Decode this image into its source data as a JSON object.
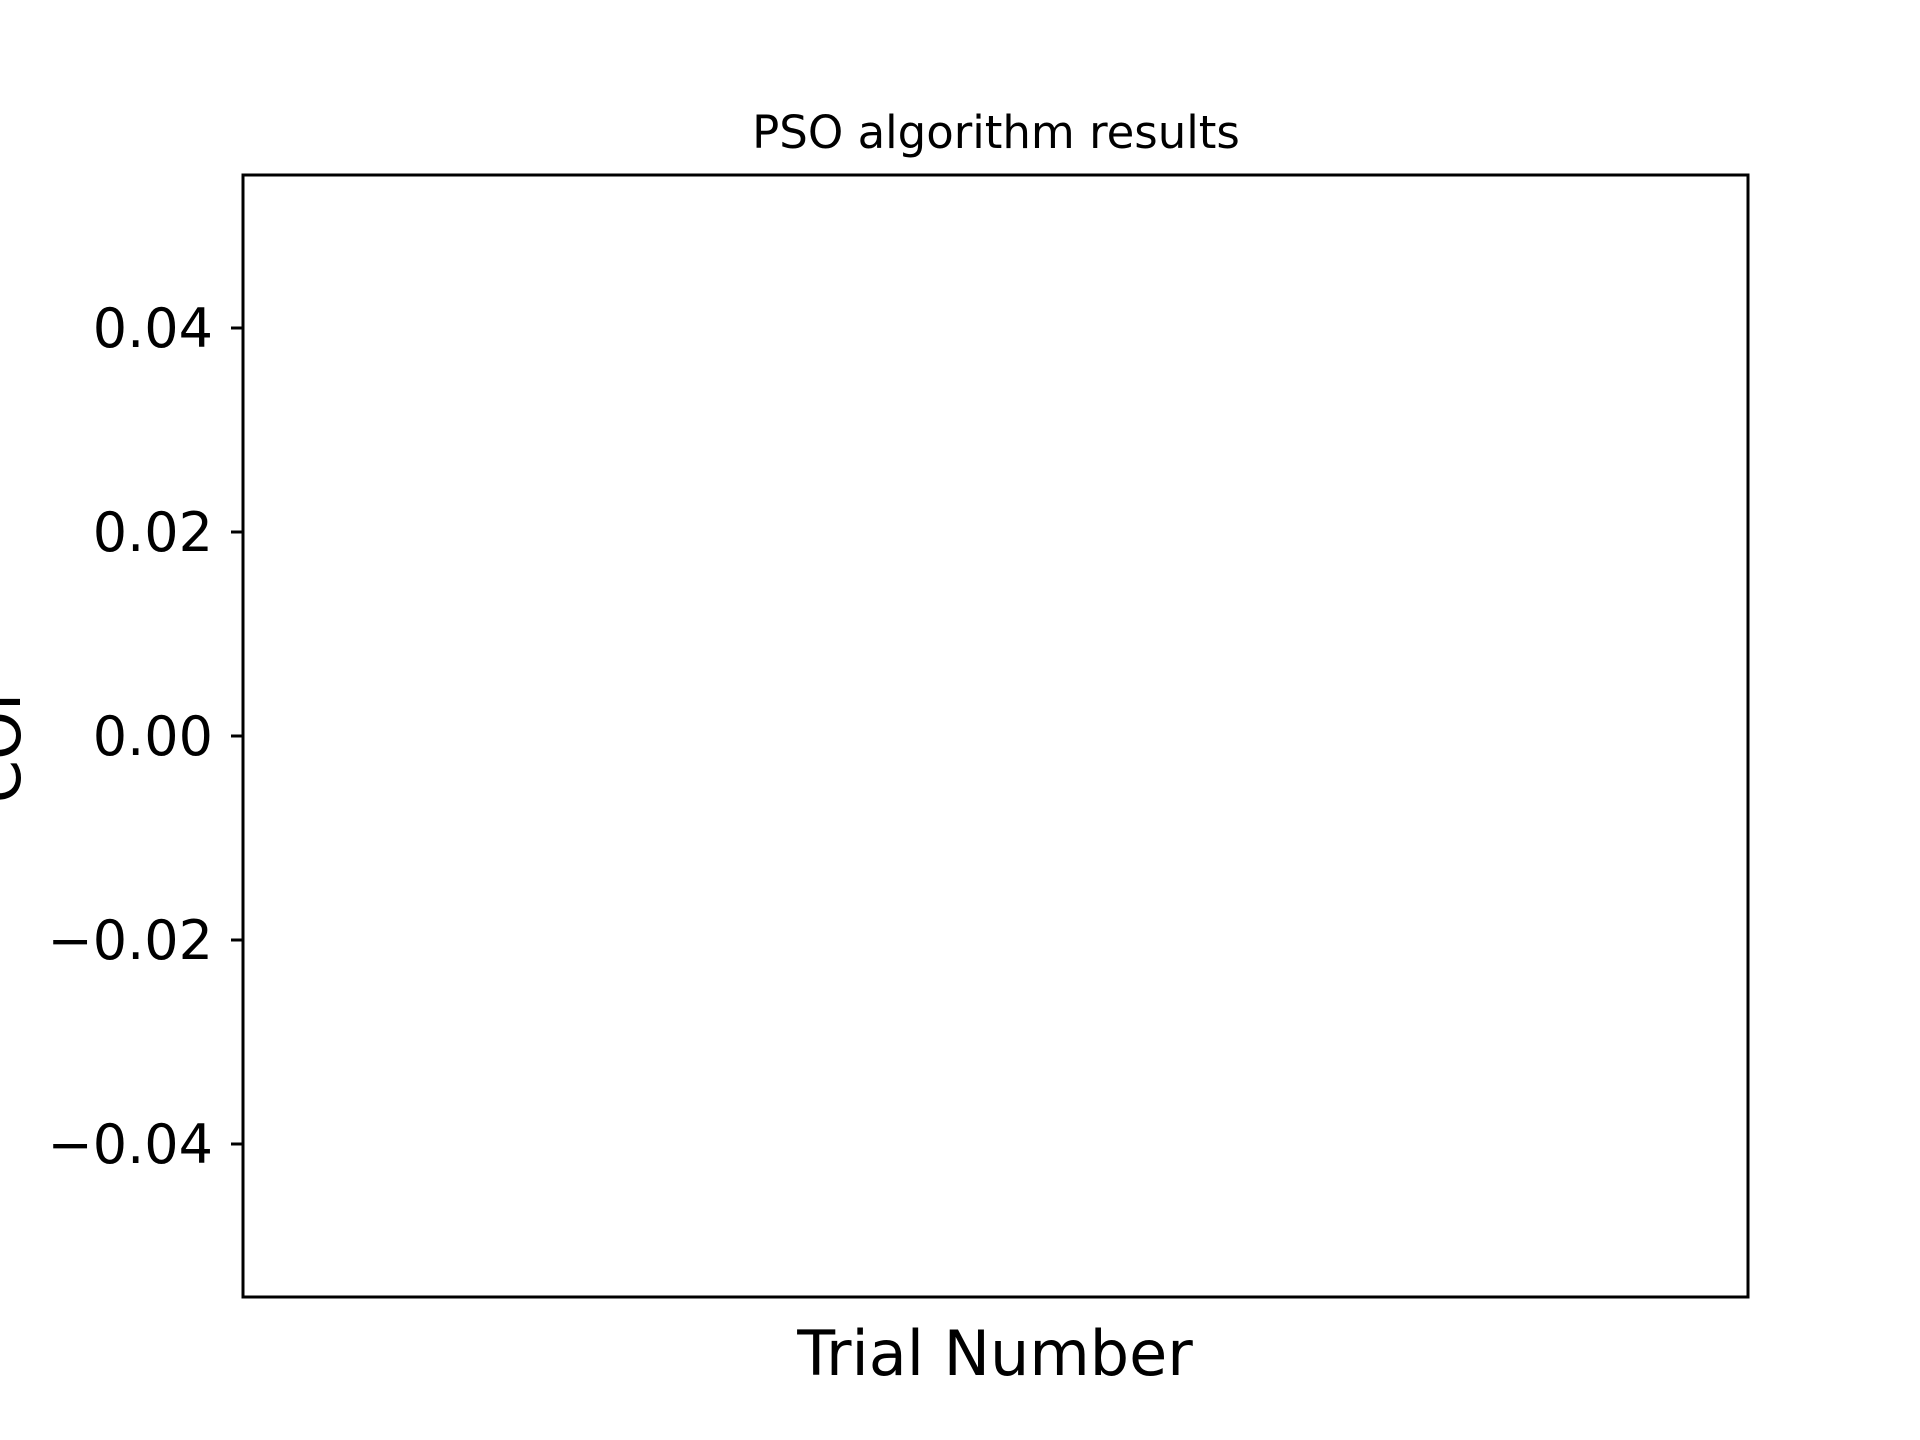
{
  "chart_data": {
    "type": "line",
    "title": "PSO algorithm results",
    "xlabel": "Trial Number",
    "ylabel": "COI",
    "x": [],
    "series": [],
    "ylim": [
      -0.055,
      0.055
    ],
    "yticks": [
      0.04,
      0.02,
      0.0,
      -0.02,
      -0.04
    ],
    "ytick_labels": [
      "0.04",
      "0.02",
      "0.00",
      "−0.02",
      "−0.04"
    ],
    "xticks": [],
    "grid": false,
    "legend": "none",
    "colors": {
      "axes": "#000000",
      "background": "#ffffff"
    }
  }
}
